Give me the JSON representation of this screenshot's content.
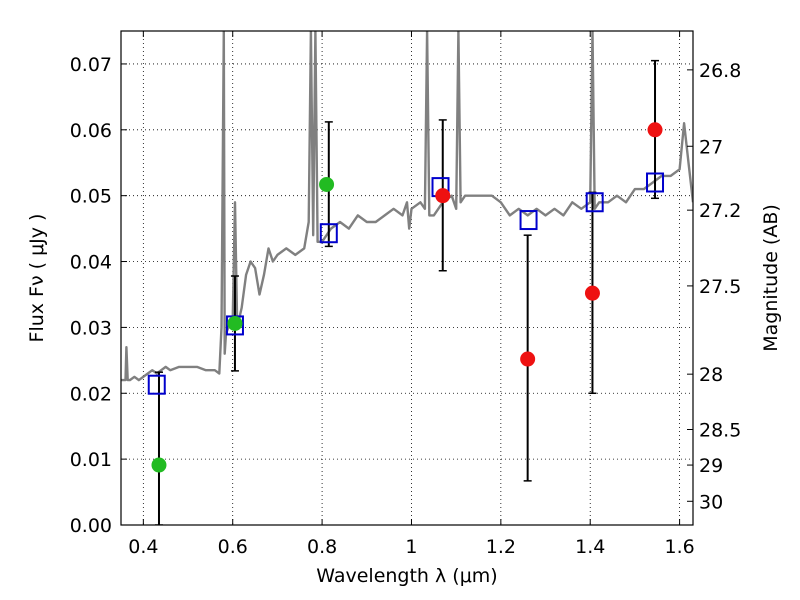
{
  "chart_data": {
    "type": "scatter",
    "xlabel": "Wavelength  λ (μm)",
    "ylabel": "Flux  Fν  ( μJy )",
    "ylabel_right": "Magnitude (AB)",
    "xlim": [
      0.35,
      1.63
    ],
    "ylim": [
      0.0,
      0.075
    ],
    "grid": true,
    "x_ticks": [
      0.4,
      0.6,
      0.8,
      1.0,
      1.2,
      1.4,
      1.6
    ],
    "x_tick_labels": [
      "0.4",
      "0.6",
      "0.8",
      "1",
      "1.2",
      "1.4",
      "1.6"
    ],
    "y_ticks": [
      0.0,
      0.01,
      0.02,
      0.03,
      0.04,
      0.05,
      0.06,
      0.07
    ],
    "y_tick_labels": [
      "0.00",
      "0.01",
      "0.02",
      "0.03",
      "0.04",
      "0.05",
      "0.06",
      "0.07"
    ],
    "mag_ticks": [
      {
        "flux": 0.0691,
        "label": "26.8"
      },
      {
        "flux": 0.0575,
        "label": "27"
      },
      {
        "flux": 0.0478,
        "label": "27.2"
      },
      {
        "flux": 0.0363,
        "label": "27.5"
      },
      {
        "flux": 0.0229,
        "label": "28"
      },
      {
        "flux": 0.0145,
        "label": "28.5"
      },
      {
        "flux": 0.0091,
        "label": "29"
      },
      {
        "flux": 0.0036,
        "label": "30"
      }
    ],
    "model_spectrum": {
      "color": "#808080",
      "x": [
        0.35,
        0.36,
        0.362,
        0.365,
        0.37,
        0.38,
        0.39,
        0.4,
        0.41,
        0.42,
        0.43,
        0.44,
        0.45,
        0.46,
        0.48,
        0.5,
        0.52,
        0.54,
        0.56,
        0.57,
        0.575,
        0.58,
        0.582,
        0.585,
        0.59,
        0.6,
        0.605,
        0.61,
        0.62,
        0.63,
        0.64,
        0.65,
        0.66,
        0.67,
        0.68,
        0.69,
        0.7,
        0.72,
        0.74,
        0.76,
        0.77,
        0.775,
        0.78,
        0.785,
        0.79,
        0.8,
        0.82,
        0.84,
        0.86,
        0.88,
        0.9,
        0.92,
        0.94,
        0.96,
        0.98,
        0.99,
        0.995,
        1.0,
        1.02,
        1.03,
        1.035,
        1.04,
        1.05,
        1.07,
        1.09,
        1.1,
        1.105,
        1.11,
        1.12,
        1.14,
        1.16,
        1.18,
        1.2,
        1.22,
        1.24,
        1.26,
        1.28,
        1.3,
        1.32,
        1.34,
        1.36,
        1.38,
        1.4,
        1.405,
        1.41,
        1.42,
        1.44,
        1.46,
        1.48,
        1.5,
        1.52,
        1.54,
        1.56,
        1.58,
        1.6,
        1.61,
        1.62,
        1.63
      ],
      "y": [
        0.022,
        0.022,
        0.027,
        0.022,
        0.022,
        0.0225,
        0.022,
        0.0225,
        0.023,
        0.0235,
        0.023,
        0.0235,
        0.024,
        0.0235,
        0.024,
        0.024,
        0.024,
        0.0235,
        0.0235,
        0.023,
        0.03,
        0.075,
        0.026,
        0.029,
        0.03,
        0.031,
        0.049,
        0.03,
        0.033,
        0.038,
        0.04,
        0.039,
        0.035,
        0.038,
        0.042,
        0.04,
        0.041,
        0.042,
        0.041,
        0.042,
        0.046,
        0.075,
        0.044,
        0.075,
        0.043,
        0.043,
        0.045,
        0.046,
        0.045,
        0.047,
        0.046,
        0.046,
        0.047,
        0.048,
        0.047,
        0.049,
        0.045,
        0.048,
        0.049,
        0.048,
        0.075,
        0.047,
        0.047,
        0.049,
        0.05,
        0.048,
        0.075,
        0.049,
        0.05,
        0.05,
        0.05,
        0.05,
        0.049,
        0.047,
        0.048,
        0.047,
        0.048,
        0.047,
        0.048,
        0.047,
        0.049,
        0.048,
        0.049,
        0.075,
        0.048,
        0.049,
        0.049,
        0.05,
        0.049,
        0.051,
        0.051,
        0.052,
        0.053,
        0.053,
        0.054,
        0.061,
        0.055,
        0.049
      ]
    },
    "series": [
      {
        "marker": "open-square",
        "color": "#0000cc",
        "x": [
          0.43,
          0.605,
          0.815,
          1.065,
          1.262,
          1.41,
          1.545
        ],
        "y": [
          0.0213,
          0.0303,
          0.0443,
          0.0513,
          0.0463,
          0.049,
          0.052
        ]
      },
      {
        "marker": "filled-circle",
        "color": "#22bb22",
        "x": [
          0.435,
          0.605,
          0.81
        ],
        "y": [
          0.0091,
          0.0306,
          0.0517
        ]
      },
      {
        "marker": "filled-circle",
        "color": "#ee1111",
        "x": [
          1.07,
          1.26,
          1.405,
          1.545
        ],
        "y": [
          0.05,
          0.0252,
          0.0352,
          0.06
        ]
      }
    ],
    "error_bars": [
      {
        "x": 0.435,
        "low": 0.0,
        "high": 0.0232
      },
      {
        "x": 0.605,
        "low": 0.0234,
        "high": 0.0378
      },
      {
        "x": 0.815,
        "low": 0.0423,
        "high": 0.0612
      },
      {
        "x": 1.07,
        "low": 0.0386,
        "high": 0.0615
      },
      {
        "x": 1.26,
        "low": 0.0067,
        "high": 0.044
      },
      {
        "x": 1.405,
        "low": 0.02,
        "high": 0.0505
      },
      {
        "x": 1.545,
        "low": 0.0496,
        "high": 0.0705
      }
    ]
  }
}
